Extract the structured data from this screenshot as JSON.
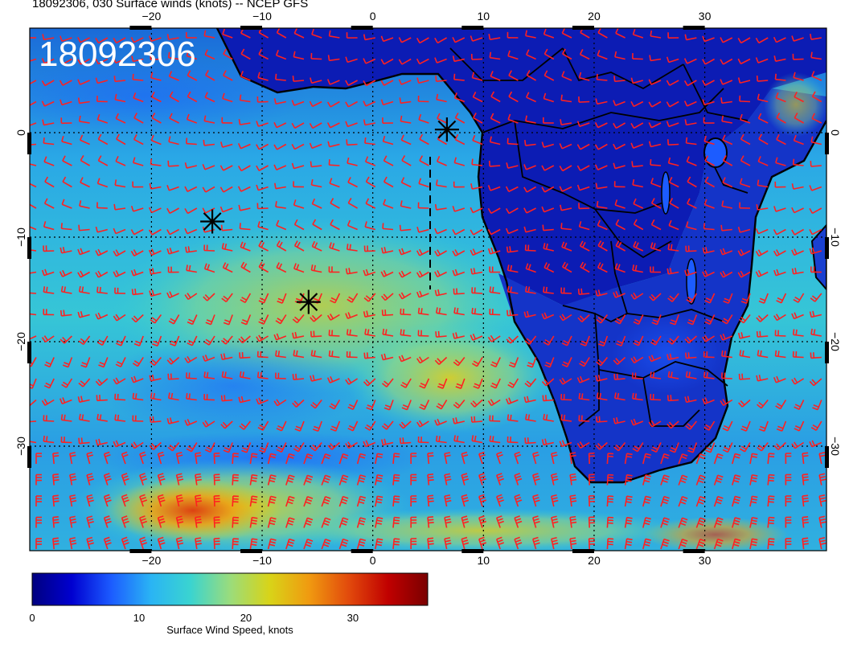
{
  "title": "18092306, 030 Surface winds (knots) -- NCEP GFS",
  "stamp": "18092306",
  "map": {
    "lon_range": [
      -31,
      41
    ],
    "lat_range": [
      -40,
      10
    ],
    "lon_ticks": [
      {
        "value": -20,
        "label": "−20"
      },
      {
        "value": -10,
        "label": "−10"
      },
      {
        "value": 0,
        "label": "0"
      },
      {
        "value": 10,
        "label": "10"
      },
      {
        "value": 20,
        "label": "20"
      },
      {
        "value": 30,
        "label": "30"
      }
    ],
    "lat_ticks": [
      {
        "value": 0,
        "label": "0"
      },
      {
        "value": -10,
        "label": "−10"
      },
      {
        "value": -20,
        "label": "−20"
      },
      {
        "value": -30,
        "label": "−30"
      }
    ],
    "grid": "dotted",
    "barb_color": "#ff2020",
    "coast_color": "#000000",
    "markers": [
      {
        "lon": -14.5,
        "lat": -8.5,
        "symbol": "asterisk"
      },
      {
        "lon": -5.8,
        "lat": -16.2,
        "symbol": "asterisk"
      },
      {
        "lon": 6.7,
        "lat": 0.3,
        "symbol": "asterisk"
      }
    ]
  },
  "colorbar": {
    "label": "Surface Wind Speed, knots",
    "range": [
      0,
      37
    ],
    "ticks": [
      {
        "value": 0,
        "label": "0"
      },
      {
        "value": 10,
        "label": "10"
      },
      {
        "value": 20,
        "label": "20"
      },
      {
        "value": 30,
        "label": "30"
      }
    ],
    "colors": [
      "#00007f",
      "#0000d0",
      "#1c5cff",
      "#2ab4f4",
      "#3ad4d0",
      "#9adc7c",
      "#d8d418",
      "#f09a10",
      "#e24a0c",
      "#c00000",
      "#7a0000"
    ]
  }
}
